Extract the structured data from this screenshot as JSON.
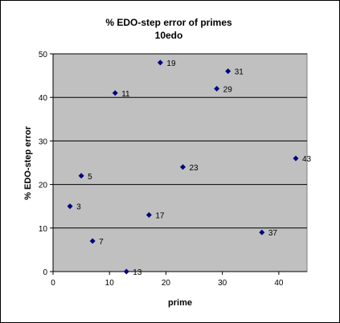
{
  "chart_data": {
    "type": "scatter",
    "title": "% EDO-step error of primes",
    "subtitle": "10edo",
    "xlabel": "prime",
    "ylabel": "% EDO-step error",
    "xlim": [
      0,
      45
    ],
    "ylim": [
      0,
      50
    ],
    "xticks": [
      0,
      10,
      20,
      30,
      40
    ],
    "yticks": [
      0,
      10,
      20,
      30,
      40,
      50
    ],
    "grid": "horizontal major",
    "legend": "none",
    "colors": {
      "plot_area": "#c0c0c0",
      "marker": "#000080",
      "gridline": "#000000"
    },
    "points": [
      {
        "x": 3,
        "y": 15,
        "label": "3"
      },
      {
        "x": 5,
        "y": 22,
        "label": "5"
      },
      {
        "x": 7,
        "y": 7,
        "label": "7"
      },
      {
        "x": 11,
        "y": 41,
        "label": "11"
      },
      {
        "x": 13,
        "y": 0,
        "label": "13"
      },
      {
        "x": 17,
        "y": 13,
        "label": "17"
      },
      {
        "x": 19,
        "y": 48,
        "label": "19"
      },
      {
        "x": 23,
        "y": 24,
        "label": "23"
      },
      {
        "x": 29,
        "y": 42,
        "label": "29"
      },
      {
        "x": 31,
        "y": 46,
        "label": "31"
      },
      {
        "x": 37,
        "y": 9,
        "label": "37"
      },
      {
        "x": 43,
        "y": 26,
        "label": "43"
      }
    ]
  }
}
